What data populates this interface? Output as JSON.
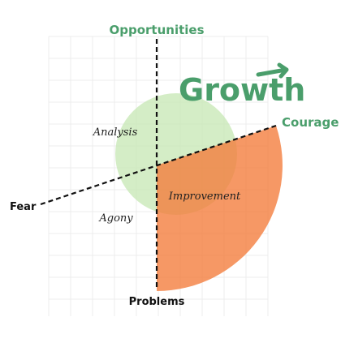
{
  "title": "Growth",
  "axes": {
    "top": "Opportunities",
    "bottom": "Problems",
    "left": "Fear",
    "right": "Courage"
  },
  "quadrants": {
    "upper_left": "Analysis",
    "lower_left": "Agony",
    "lower_right": "Improvement"
  }
}
